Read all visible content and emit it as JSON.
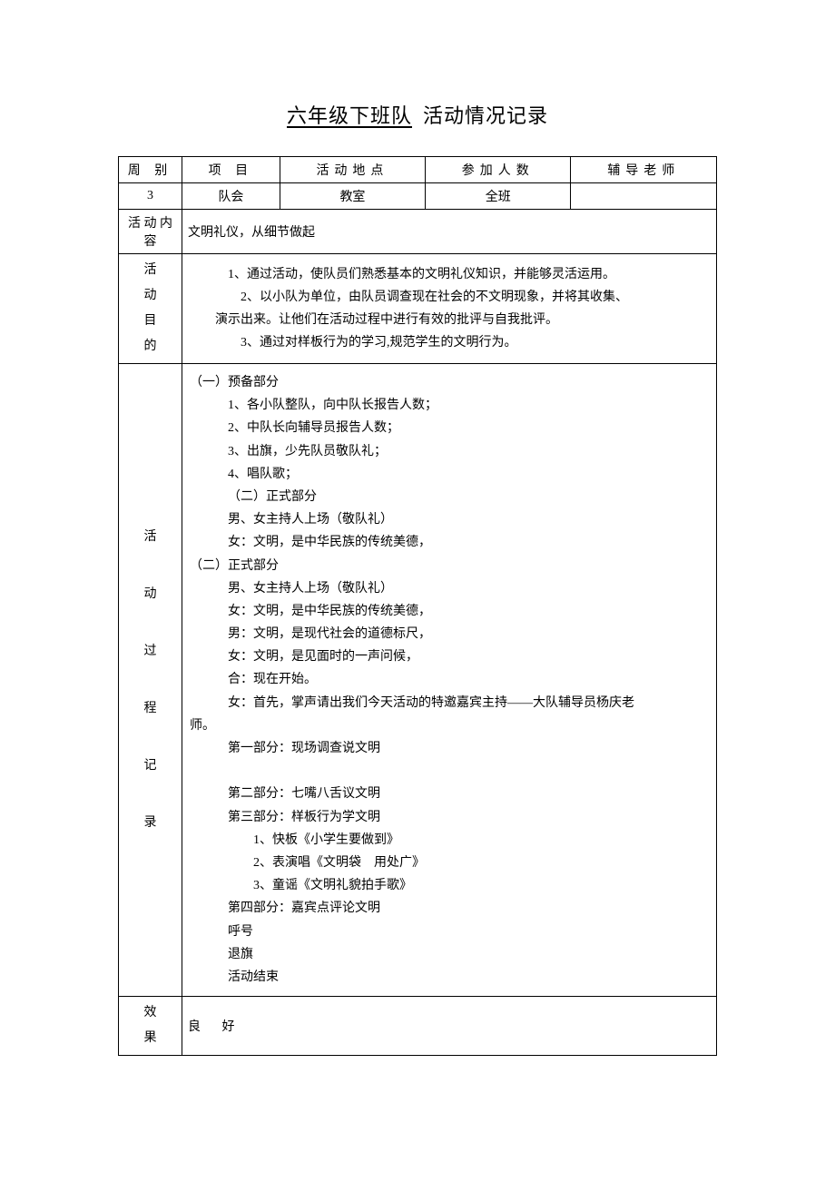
{
  "title": {
    "underlined": "六年级下班队",
    "rest": "活动情况记录"
  },
  "headers": {
    "week": "周 别",
    "project": "项 目",
    "location": "活动地点",
    "participants": "参加人数",
    "teacher": "辅导老师"
  },
  "row1": {
    "week": "3",
    "project": "队会",
    "location": "教室",
    "participants": "全班",
    "teacher": ""
  },
  "labels": {
    "content1": "活 动",
    "content2": "内 容",
    "purpose1": "活",
    "purpose2": "动",
    "purpose3": "目",
    "purpose4": "的",
    "process1": "活",
    "process2": "动",
    "process3": "过",
    "process4": "程",
    "process5": "记",
    "process6": "录",
    "effect1": "效",
    "effect2": "果"
  },
  "topic": "文明礼仪，从细节做起",
  "purpose": {
    "l1": "1、通过活动，使队员们熟悉基本的文明礼仪知识，并能够灵活运用。",
    "l2": "2、以小队为单位，由队员调查现在社会的不文明现象，并将其收集、",
    "l3": "演示出来。让他们在活动过程中进行有效的批评与自我批评。",
    "l4": "3、通过对样板行为的学习,规范学生的文明行为。"
  },
  "process": {
    "p1": "（一）预备部分",
    "p2": "1、各小队整队，向中队长报告人数；",
    "p3": "2、中队长向辅导员报告人数；",
    "p4": "3、出旗，少先队员敬队礼；",
    "p5": "4、唱队歌；",
    "p6": "（二）正式部分",
    "p7": "男、女主持人上场（敬队礼）",
    "p8": "女：文明，是中华民族的传统美德，",
    "p9": "（二）正式部分",
    "p10": "男、女主持人上场（敬队礼）",
    "p11": "女：文明，是中华民族的传统美德，",
    "p12": "男：文明，是现代社会的道德标尺，",
    "p13": "女：文明，是见面时的一声问候，",
    "p14": "合：现在开始。",
    "p15": "女：首先，掌声请出我们今天活动的特邀嘉宾主持——大队辅导员杨庆老",
    "p16": "师。",
    "p17": "第一部分：现场调查说文明",
    "p18": "第二部分：七嘴八舌议文明",
    "p19": "第三部分：样板行为学文明",
    "p20": "1、快板《小学生要做到》",
    "p21": "2、表演唱《文明袋 用处广》",
    "p22": "3、童谣《文明礼貌拍手歌》",
    "p23": "第四部分：嘉宾点评论文明",
    "p24": "呼号",
    "p25": "退旗",
    "p26": "活动结束"
  },
  "effect": "良 好"
}
